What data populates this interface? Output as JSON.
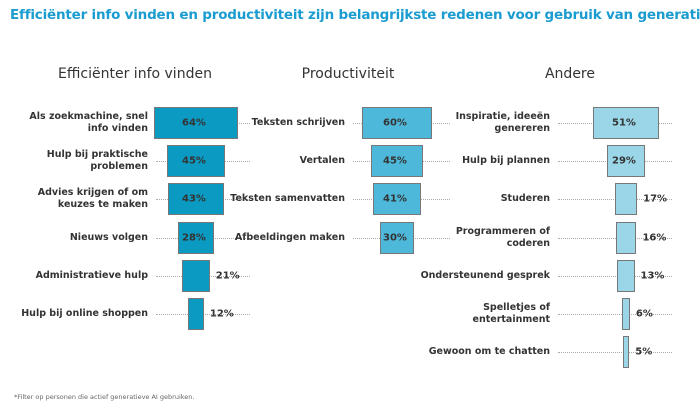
{
  "title": "Efficiënter info vinden en productiviteit zijn belangrijkste redenen voor gebruik van generatieve AI*",
  "footnote": "*Filter op personen die actief generatieve AI gebruiken.",
  "chart_data": [
    {
      "type": "bar",
      "orientation": "horizontal-centered",
      "title": "Efficiënter info vinden",
      "color": "#0a9ac2",
      "categories": [
        "Als zoekmachine, snel info vinden",
        "Hulp bij praktische problemen",
        "Advies krijgen of om keuzes te maken",
        "Nieuws volgen",
        "Administratieve hulp",
        "Hulp bij online shoppen"
      ],
      "values": [
        64,
        45,
        43,
        28,
        21,
        12
      ],
      "labels": [
        "64%",
        "45%",
        "43%",
        "28%",
        "21%",
        "12%"
      ]
    },
    {
      "type": "bar",
      "orientation": "horizontal-centered",
      "title": "Productiviteit",
      "color": "#4db8da",
      "categories": [
        "Teksten schrijven",
        "Vertalen",
        "Teksten samenvatten",
        "Afbeeldingen maken"
      ],
      "values": [
        60,
        45,
        41,
        30
      ],
      "labels": [
        "60%",
        "45%",
        "41%",
        "30%"
      ]
    },
    {
      "type": "bar",
      "orientation": "horizontal-centered",
      "title": "Andere",
      "color": "#9ad6e7",
      "categories": [
        "Inspiratie, ideeën genereren",
        "Hulp bij plannen",
        "Studeren",
        "Programmeren of coderen",
        "Ondersteunend gesprek",
        "Spelletjes of entertainment",
        "Gewoon om te chatten"
      ],
      "values": [
        51,
        29,
        17,
        16,
        13,
        6,
        5
      ],
      "labels": [
        "51%",
        "29%",
        "17%",
        "16%",
        "13%",
        "6%",
        "5%"
      ]
    }
  ]
}
